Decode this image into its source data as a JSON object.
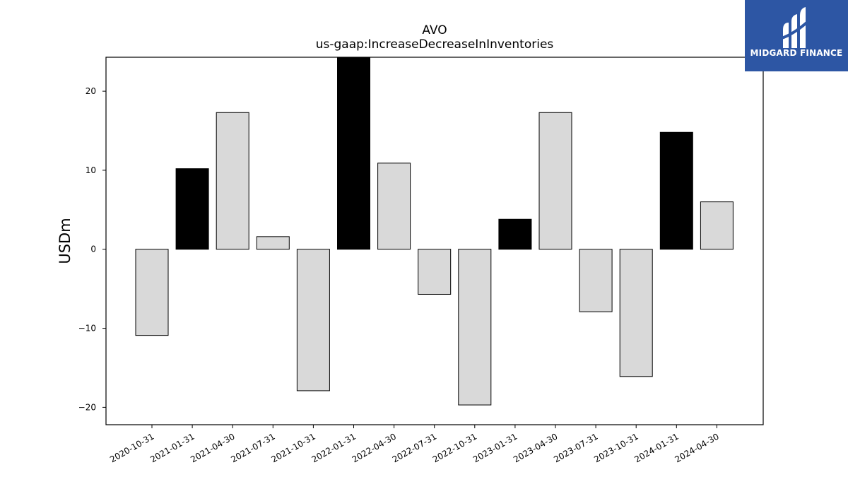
{
  "chart_data": {
    "type": "bar",
    "title": "AVO",
    "subtitle": "us-gaap:IncreaseDecreaseInInventories",
    "xlabel": "",
    "ylabel": "USDm",
    "ylim": [
      -22.2,
      24.3
    ],
    "yticks": [
      -20,
      -10,
      0,
      10,
      20
    ],
    "grid": false,
    "categories": [
      "2020-10-31",
      "2021-01-31",
      "2021-04-30",
      "2021-07-31",
      "2021-10-31",
      "2022-01-31",
      "2022-04-30",
      "2022-07-31",
      "2022-10-31",
      "2023-01-31",
      "2023-04-30",
      "2023-07-31",
      "2023-10-31",
      "2024-01-31",
      "2024-04-30"
    ],
    "values": [
      -10.9,
      10.2,
      17.3,
      1.6,
      -17.9,
      24.3,
      10.9,
      -5.7,
      -19.7,
      3.8,
      17.3,
      -7.9,
      -16.1,
      14.8,
      6.0
    ],
    "bar_colors": [
      "#d9d9d9",
      "#000000",
      "#d9d9d9",
      "#d9d9d9",
      "#d9d9d9",
      "#000000",
      "#d9d9d9",
      "#d9d9d9",
      "#d9d9d9",
      "#000000",
      "#d9d9d9",
      "#d9d9d9",
      "#d9d9d9",
      "#000000",
      "#d9d9d9"
    ],
    "edge_color": "#000000"
  },
  "logo": {
    "text": "MIDGARD FINANCE",
    "background": "#2d56a4"
  }
}
